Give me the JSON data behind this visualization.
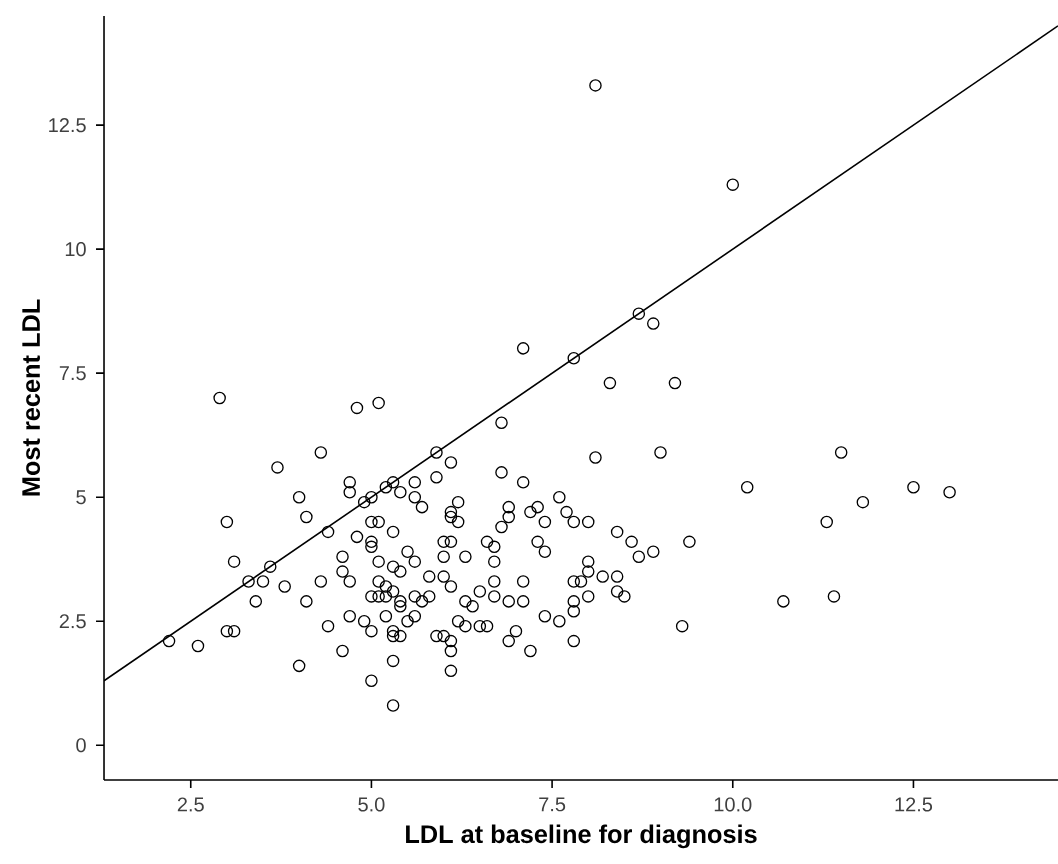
{
  "chart_data": {
    "type": "scatter",
    "xlabel": "LDL at baseline for diagnosis",
    "ylabel": "Most recent LDL",
    "xlim": [
      1.3,
      14.5
    ],
    "ylim": [
      -0.7,
      14.7
    ],
    "xticks": [
      2.5,
      {
        "value": 5,
        "label": "5.0"
      },
      7.5,
      {
        "value": 10,
        "label": "10.0"
      },
      12.5
    ],
    "yticks": [
      0,
      2.5,
      5,
      7.5,
      10,
      12.5
    ],
    "marker": "circle",
    "series": [
      {
        "color": "#000000",
        "x": [
          2.9,
          4.8,
          5.1,
          4.3,
          3.7,
          4.7,
          4.7,
          4.0,
          4.9,
          5.0,
          5.2,
          5.3,
          5.4,
          4.1,
          3.0,
          4.4,
          4.8,
          5.0,
          5.1,
          5.0,
          5.0,
          5.3,
          3.1,
          3.6,
          3.5,
          3.3,
          3.4,
          3.8,
          4.1,
          4.3,
          4.6,
          4.6,
          4.7,
          5.1,
          5.3,
          5.4,
          5.1,
          5.2,
          5.1,
          5.2,
          5.0,
          5.3,
          5.4,
          5.4,
          5.4,
          5.3,
          5.3,
          5.0,
          5.2,
          4.9,
          4.7,
          4.4,
          4.6,
          4.0,
          5.0,
          5.3,
          5.3,
          2.2,
          2.6,
          3.0,
          3.1,
          8.3,
          9.2,
          6.8,
          5.9,
          6.1,
          8.1,
          9.0,
          6.8,
          7.1,
          5.6,
          5.9,
          5.6,
          5.7,
          6.2,
          6.1,
          6.1,
          6.2,
          6.9,
          6.9,
          6.8,
          7.2,
          7.3,
          7.4,
          7.6,
          7.7,
          7.8,
          8.0,
          8.4,
          8.6,
          8.7,
          8.9,
          9.4,
          7.3,
          7.4,
          6.6,
          6.7,
          6.7,
          6.0,
          6.1,
          6.0,
          6.3,
          5.5,
          5.6,
          5.8,
          6.0,
          6.1,
          6.5,
          6.3,
          6.4,
          6.7,
          7.1,
          6.7,
          6.9,
          7.1,
          5.6,
          5.8,
          5.7,
          5.6,
          5.5,
          6.2,
          6.3,
          6.5,
          6.6,
          5.9,
          6.0,
          6.1,
          6.1,
          6.1,
          6.9,
          7.0,
          7.2,
          7.4,
          7.6,
          7.8,
          7.8,
          7.9,
          7.8,
          8.0,
          8.0,
          8.0,
          8.2,
          8.4,
          8.4,
          8.5,
          7.8,
          9.3,
          10.2,
          11.5,
          12.5,
          13.0,
          11.8,
          11.3,
          10.7,
          11.4,
          7.1,
          7.8,
          8.1,
          10.0,
          8.7,
          8.9
        ],
        "values": [
          7.0,
          6.8,
          6.9,
          5.9,
          5.6,
          5.3,
          5.1,
          5.0,
          4.9,
          5.0,
          5.2,
          5.3,
          5.1,
          4.6,
          4.5,
          4.3,
          4.2,
          4.5,
          4.5,
          4.1,
          4.0,
          4.3,
          3.7,
          3.6,
          3.3,
          3.3,
          2.9,
          3.2,
          2.9,
          3.3,
          3.8,
          3.5,
          3.3,
          3.7,
          3.6,
          3.5,
          3.3,
          3.2,
          3.0,
          3.0,
          3.0,
          3.1,
          2.9,
          2.8,
          2.2,
          2.3,
          2.2,
          2.3,
          2.6,
          2.5,
          2.6,
          2.4,
          1.9,
          1.6,
          1.3,
          0.8,
          1.7,
          2.1,
          2.0,
          2.3,
          2.3,
          7.3,
          7.3,
          6.5,
          5.9,
          5.7,
          5.8,
          5.9,
          5.5,
          5.3,
          5.3,
          5.4,
          5.0,
          4.8,
          4.9,
          4.7,
          4.6,
          4.5,
          4.8,
          4.6,
          4.4,
          4.7,
          4.8,
          4.5,
          5.0,
          4.7,
          4.5,
          4.5,
          4.3,
          4.1,
          3.8,
          3.9,
          4.1,
          4.1,
          3.9,
          4.1,
          4.0,
          3.7,
          4.1,
          4.1,
          3.8,
          3.8,
          3.9,
          3.7,
          3.4,
          3.4,
          3.2,
          3.1,
          2.9,
          2.8,
          3.3,
          3.3,
          3.0,
          2.9,
          2.9,
          3.0,
          3.0,
          2.9,
          2.6,
          2.5,
          2.5,
          2.4,
          2.4,
          2.4,
          2.2,
          2.2,
          2.1,
          1.9,
          1.5,
          2.1,
          2.3,
          1.9,
          2.6,
          2.5,
          2.7,
          2.9,
          3.3,
          3.3,
          3.5,
          3.7,
          3.0,
          3.4,
          3.4,
          3.1,
          3.0,
          2.1,
          2.4,
          5.2,
          5.9,
          5.2,
          5.1,
          4.9,
          4.5,
          2.9,
          3.0,
          8.0,
          7.8,
          13.3,
          11.3,
          8.7,
          8.5
        ]
      },
      {
        "type": "line",
        "marker": "none",
        "color": "#000000",
        "x": [
          1.3,
          14.5
        ],
        "values": [
          1.3,
          14.5
        ]
      }
    ]
  }
}
